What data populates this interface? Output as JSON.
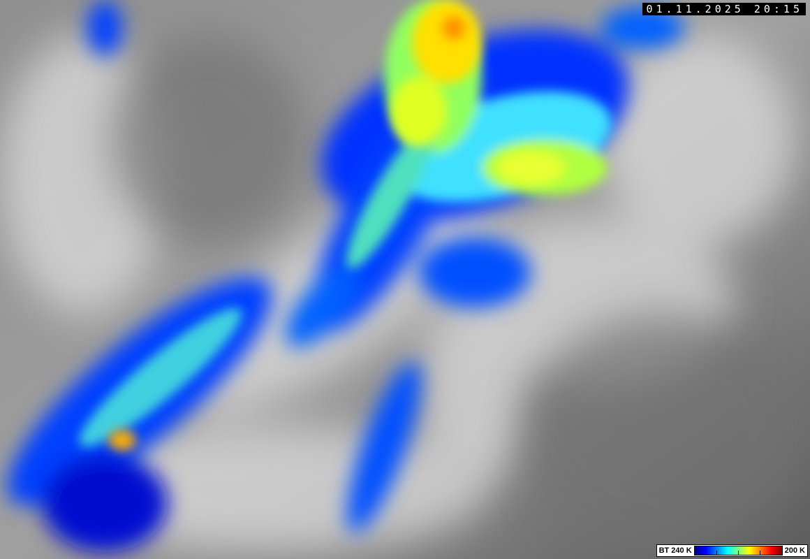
{
  "timestamp": "01.11.2025 20:15",
  "legend": {
    "left_label": "BT 240 K",
    "right_label": "200 K",
    "colors": [
      "#00008a",
      "#0000ff",
      "#0080ff",
      "#00ffff",
      "#80ff80",
      "#ffff00",
      "#ff8000",
      "#ff0000",
      "#800000"
    ]
  }
}
